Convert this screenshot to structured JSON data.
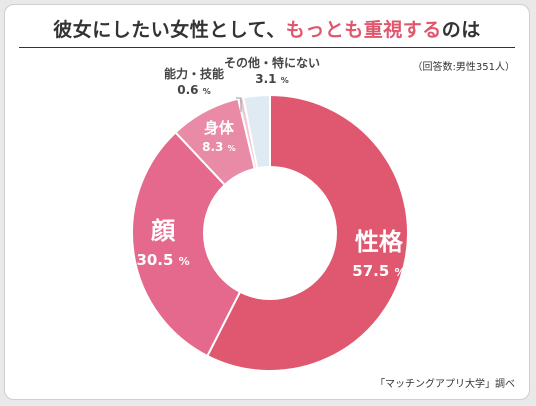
{
  "title": {
    "prefix": "彼女にしたい女性として、",
    "highlight": "もっとも重視する",
    "suffix": "のは"
  },
  "note": "（回答数:男性351人）",
  "source": "「マッチングアプリ大学」調べ",
  "unit": "%",
  "chart_data": {
    "type": "pie",
    "donut": true,
    "categories": [
      "性格",
      "顔",
      "身体",
      "能力・技能",
      "その他・特にない"
    ],
    "values": [
      57.5,
      30.5,
      8.3,
      0.6,
      3.1
    ],
    "value_labels": [
      "57.5",
      "30.5",
      "8.3",
      "0.6",
      "3.1"
    ],
    "colors": [
      "#e0586f",
      "#e4698c",
      "#e98aa6",
      "#f1c6d2",
      "#dfeaf2"
    ],
    "start": "12 o'clock",
    "direction": "clockwise"
  }
}
